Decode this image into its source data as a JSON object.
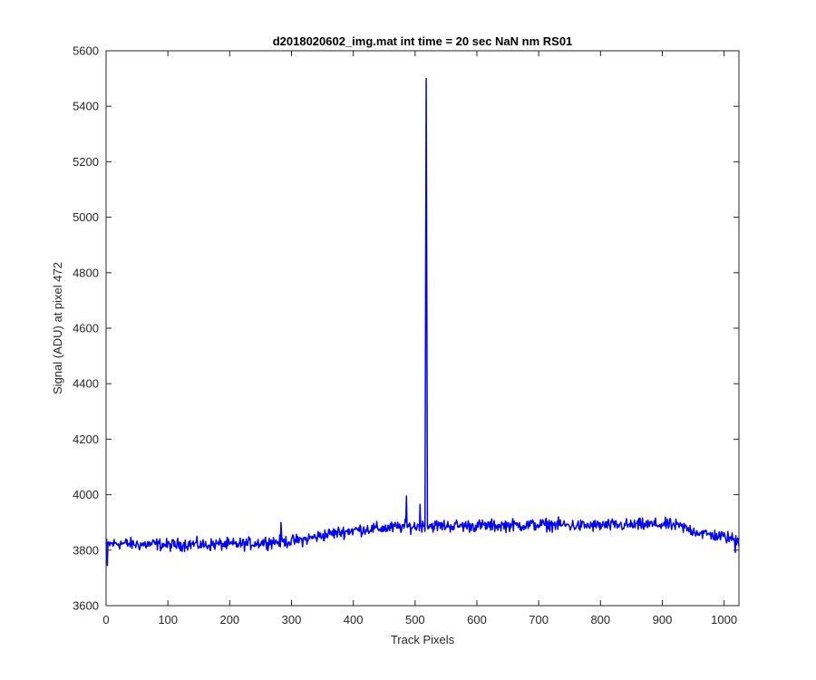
{
  "chart_data": {
    "type": "line",
    "title": "d2018020602_img.mat int time = 20 sec  NaN nm RS01",
    "xlabel": "Track Pixels",
    "ylabel": "Signal (ADU) at pixel 472",
    "xlim": [
      0,
      1024
    ],
    "ylim": [
      3600,
      5600
    ],
    "xticks": [
      0,
      100,
      200,
      300,
      400,
      500,
      600,
      700,
      800,
      900,
      1000
    ],
    "yticks": [
      3600,
      3800,
      4000,
      4200,
      4400,
      4600,
      4800,
      5000,
      5200,
      5400,
      5600
    ],
    "grid": false,
    "series": [
      {
        "color": "#0000ff",
        "x": [
          0,
          20,
          40,
          60,
          80,
          100,
          120,
          140,
          160,
          180,
          200,
          220,
          240,
          260,
          280,
          300,
          320,
          340,
          360,
          380,
          400,
          420,
          440,
          460,
          480,
          500,
          510,
          516,
          518,
          520,
          522,
          530,
          550,
          570,
          600,
          630,
          650,
          680,
          700,
          730,
          760,
          790,
          820,
          850,
          880,
          910,
          930,
          950,
          970,
          1000,
          1024
        ],
        "values": [
          3820,
          3825,
          3822,
          3820,
          3822,
          3818,
          3820,
          3822,
          3818,
          3822,
          3820,
          3822,
          3825,
          3830,
          3830,
          3832,
          3838,
          3848,
          3858,
          3865,
          3872,
          3876,
          3878,
          3880,
          3885,
          3885,
          3888,
          3890,
          5500,
          3890,
          3888,
          3888,
          3888,
          3888,
          3888,
          3888,
          3890,
          3890,
          3892,
          3892,
          3888,
          3888,
          3890,
          3890,
          3892,
          3892,
          3885,
          3870,
          3858,
          3848,
          3835
        ],
        "noise_amplitude": 22,
        "outliers": [
          {
            "x": 2,
            "y": 3745
          },
          {
            "x": 283,
            "y": 3900
          },
          {
            "x": 486,
            "y": 3995
          },
          {
            "x": 508,
            "y": 3965
          },
          {
            "x": 1018,
            "y": 3792
          }
        ]
      }
    ]
  }
}
